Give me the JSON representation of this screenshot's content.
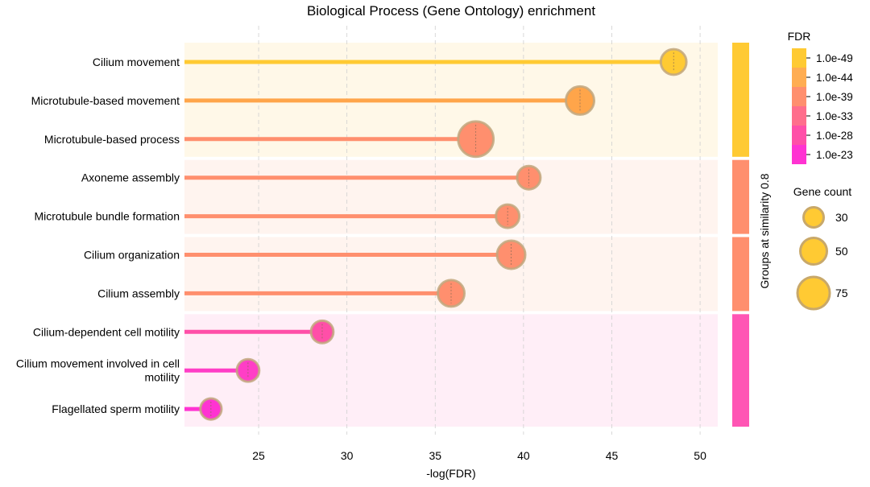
{
  "chart_data": {
    "type": "lollipop",
    "title": "Biological Process (Gene Ontology) enrichment",
    "xlabel": "-log(FDR)",
    "xlim": [
      20.8,
      51
    ],
    "xticks": [
      25,
      30,
      35,
      40,
      45,
      50
    ],
    "grid": true,
    "categories": [
      "Cilium movement",
      "Microtubule-based movement",
      "Microtubule-based process",
      "Axoneme assembly",
      "Microtubule bundle formation",
      "Cilium organization",
      "Cilium assembly",
      "Cilium-dependent cell motility",
      "Cilium movement involved in cell motility",
      "Flagellated sperm motility"
    ],
    "category_lines": [
      [
        "Cilium movement"
      ],
      [
        "Microtubule-based movement"
      ],
      [
        "Microtubule-based process"
      ],
      [
        "Axoneme assembly"
      ],
      [
        "Microtubule bundle formation"
      ],
      [
        "Cilium organization"
      ],
      [
        "Cilium assembly"
      ],
      [
        "Cilium-dependent cell motility"
      ],
      [
        "Cilium movement involved in cell",
        "motility"
      ],
      [
        "Flagellated sperm motility"
      ]
    ],
    "values": [
      48.5,
      43.2,
      37.3,
      40.3,
      39.1,
      39.3,
      35.9,
      28.6,
      24.4,
      22.3
    ],
    "gene_counts": [
      42,
      50,
      72,
      35,
      35,
      50,
      45,
      32,
      32,
      28
    ],
    "colors": [
      "#ffca33",
      "#ffa54a",
      "#ff8f6e",
      "#ff8f6e",
      "#ff8f6e",
      "#ff8f6e",
      "#ff8f6e",
      "#ff4fa8",
      "#ff3ec6",
      "#ff33d2"
    ],
    "groups": [
      {
        "label": "group-1",
        "start": 0,
        "end": 2,
        "bg": "#fff8e8",
        "bar": "#ffca33"
      },
      {
        "label": "group-2",
        "start": 3,
        "end": 4,
        "bg": "#fff4ef",
        "bar": "#ff8f6e"
      },
      {
        "label": "group-3",
        "start": 5,
        "end": 6,
        "bg": "#fff4ef",
        "bar": "#ff8f6e"
      },
      {
        "label": "group-4",
        "start": 7,
        "end": 9,
        "bg": "#ffeef7",
        "bar": "#ff55b4"
      }
    ],
    "group_axis_label": "Groups at similarity 0.8",
    "fdr_legend": {
      "title": "FDR",
      "labels": [
        "1.0e-49",
        "1.0e-44",
        "1.0e-39",
        "1.0e-33",
        "1.0e-28",
        "1.0e-23"
      ],
      "colors": [
        "#ffca33",
        "#ffad52",
        "#ff8f6e",
        "#ff6e8c",
        "#ff4fa8",
        "#ff33d2"
      ]
    },
    "gene_count_legend": {
      "title": "Gene count",
      "values": [
        30,
        50,
        75
      ],
      "color": "#ffca33",
      "edge": "#c8a86a"
    }
  }
}
